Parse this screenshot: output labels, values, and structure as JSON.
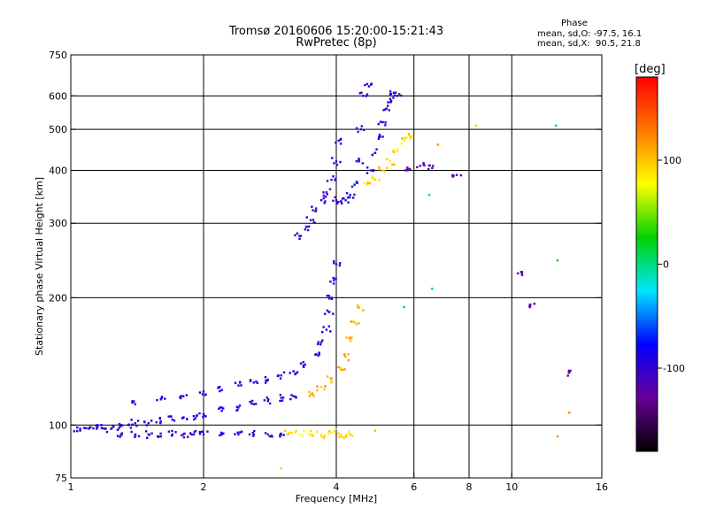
{
  "chart_data": {
    "type": "scatter",
    "title": "Tromsø 20160606 15:20:00-15:21:43",
    "subtitle": "RwPretec (8p)",
    "xlabel": "Frequency [MHz]",
    "ylabel": "Stationary phase Virtual Height [km]",
    "x_scale": "log",
    "y_scale": "log",
    "xlim": [
      1,
      16
    ],
    "ylim": [
      75,
      750
    ],
    "x_ticks": [
      1,
      2,
      4,
      6,
      8,
      10,
      16
    ],
    "x_gridlines": [
      2,
      4,
      6,
      8,
      10
    ],
    "y_ticks": [
      75,
      100,
      200,
      300,
      400,
      500,
      600,
      750
    ],
    "y_gridlines": [
      100,
      200,
      300,
      400,
      500,
      600
    ],
    "grid": true,
    "colorbar": {
      "label": "[deg]",
      "range": [
        -180,
        180
      ],
      "ticks": [
        -100,
        0,
        100
      ],
      "colors": [
        "#000000",
        "#6a0098",
        "#0000ff",
        "#00e6ff",
        "#00d200",
        "#ffff00",
        "#ff7800",
        "#ff0000"
      ]
    },
    "phase_stats": {
      "heading": "Phase",
      "o_mode": "mean, sd,O: -97.5, 16.1",
      "x_mode": "mean, sd,X:  90.5, 21.8"
    },
    "traces": [
      {
        "phase": -95,
        "points": [
          [
            1.0,
            97
          ],
          [
            1.05,
            97
          ],
          [
            1.1,
            98
          ],
          [
            1.15,
            99
          ],
          [
            1.2,
            98
          ],
          [
            1.25,
            99
          ],
          [
            1.3,
            100
          ],
          [
            1.35,
            100
          ],
          [
            1.4,
            101
          ],
          [
            1.5,
            101
          ],
          [
            1.6,
            102
          ],
          [
            1.7,
            103
          ],
          [
            1.8,
            104
          ],
          [
            1.9,
            105
          ],
          [
            2.0,
            106
          ],
          [
            2.2,
            108
          ],
          [
            2.4,
            110
          ],
          [
            2.6,
            112
          ],
          [
            2.8,
            114
          ],
          [
            3.0,
            116
          ],
          [
            3.2,
            117
          ]
        ]
      },
      {
        "phase": -100,
        "points": [
          [
            1.3,
            95
          ],
          [
            1.4,
            95
          ],
          [
            1.5,
            95
          ],
          [
            1.6,
            94
          ],
          [
            1.7,
            95
          ],
          [
            1.8,
            95
          ],
          [
            1.9,
            95
          ],
          [
            2.0,
            95
          ],
          [
            2.2,
            95
          ],
          [
            2.4,
            95
          ],
          [
            2.6,
            95
          ],
          [
            2.8,
            95
          ],
          [
            3.0,
            95
          ]
        ]
      },
      {
        "phase": 90,
        "points": [
          [
            3.1,
            95
          ],
          [
            3.3,
            95
          ],
          [
            3.5,
            95
          ],
          [
            3.7,
            95
          ],
          [
            3.9,
            96
          ],
          [
            4.1,
            95
          ],
          [
            4.3,
            95
          ]
        ]
      },
      {
        "phase": -95,
        "points": [
          [
            1.4,
            112
          ],
          [
            1.6,
            115
          ],
          [
            1.8,
            117
          ],
          [
            2.0,
            120
          ],
          [
            2.2,
            121
          ],
          [
            2.4,
            124
          ],
          [
            2.6,
            126
          ],
          [
            2.8,
            128
          ],
          [
            3.0,
            131
          ],
          [
            3.2,
            134
          ],
          [
            3.4,
            139
          ],
          [
            3.6,
            147
          ],
          [
            3.7,
            157
          ],
          [
            3.8,
            168
          ],
          [
            3.85,
            185
          ],
          [
            3.9,
            200
          ],
          [
            3.95,
            220
          ],
          [
            4.0,
            240
          ]
        ]
      },
      {
        "phase": -100,
        "points": [
          [
            3.3,
            280
          ],
          [
            3.4,
            290
          ],
          [
            3.5,
            305
          ],
          [
            3.6,
            325
          ],
          [
            3.7,
            340
          ],
          [
            3.8,
            355
          ],
          [
            3.9,
            380
          ],
          [
            4.0,
            420
          ],
          [
            4.05,
            470
          ]
        ]
      },
      {
        "phase": -100,
        "points": [
          [
            4.0,
            340
          ],
          [
            4.1,
            338
          ],
          [
            4.2,
            340
          ],
          [
            4.3,
            350
          ],
          [
            4.4,
            370
          ],
          [
            4.5,
            420
          ],
          [
            4.55,
            500
          ],
          [
            4.6,
            600
          ],
          [
            4.7,
            640
          ]
        ]
      },
      {
        "phase": -90,
        "points": [
          [
            4.8,
            400
          ],
          [
            4.9,
            440
          ],
          [
            5.0,
            480
          ],
          [
            5.1,
            520
          ],
          [
            5.2,
            560
          ],
          [
            5.3,
            590
          ],
          [
            5.4,
            610
          ]
        ]
      },
      {
        "phase": 95,
        "points": [
          [
            4.7,
            370
          ],
          [
            4.9,
            380
          ],
          [
            5.1,
            400
          ],
          [
            5.3,
            420
          ],
          [
            5.5,
            450
          ],
          [
            5.7,
            470
          ],
          [
            5.9,
            480
          ]
        ]
      },
      {
        "phase": 110,
        "points": [
          [
            3.5,
            118
          ],
          [
            3.7,
            123
          ],
          [
            3.9,
            128
          ],
          [
            4.1,
            135
          ],
          [
            4.2,
            145
          ],
          [
            4.3,
            160
          ],
          [
            4.4,
            175
          ],
          [
            4.5,
            190
          ]
        ]
      },
      {
        "phase": -120,
        "points": [
          [
            5.8,
            400
          ],
          [
            6.2,
            410
          ],
          [
            6.6,
            405
          ],
          [
            7.5,
            390
          ],
          [
            10.5,
            230
          ],
          [
            11.0,
            190
          ],
          [
            13.5,
            133
          ],
          [
            5.5,
            600
          ]
        ]
      },
      {
        "phase": 10,
        "points": [
          [
            6.5,
            350
          ],
          [
            6.6,
            210
          ],
          [
            12.6,
            510
          ],
          [
            12.7,
            245
          ],
          [
            5.7,
            190
          ]
        ]
      },
      {
        "phase": 110,
        "points": [
          [
            6.8,
            460
          ],
          [
            8.3,
            510
          ],
          [
            12.7,
            94
          ],
          [
            13.5,
            107
          ],
          [
            4.9,
            97
          ],
          [
            3.0,
            79
          ]
        ]
      }
    ]
  }
}
